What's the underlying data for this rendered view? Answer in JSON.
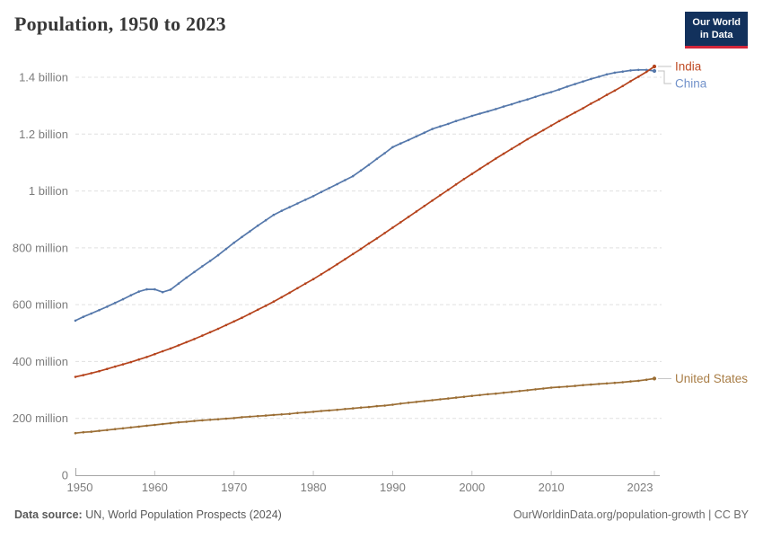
{
  "header": {
    "title": "Population, 1950 to 2023"
  },
  "logo": {
    "line1": "Our World",
    "line2": "in Data",
    "bg": "#12315c",
    "accent": "#d2263a"
  },
  "footer": {
    "source_label": "Data source:",
    "source_text": " UN, World Population Prospects (2024)",
    "right_text": "OurWorldinData.org/population-growth | CC BY"
  },
  "colors": {
    "grid": "#e0e0e0",
    "axis": "#a5a5a5",
    "tick": "#c3c3c3",
    "tick_label": "#7c7c7c",
    "connector": "#c2c2c2"
  },
  "chart_data": {
    "type": "line",
    "title": "Population, 1950 to 2023",
    "unit": "millions of people",
    "grid": true,
    "legend_position": "right-entity-labels",
    "ylim": [
      0,
      1400
    ],
    "xlim": [
      1950,
      2023
    ],
    "x": [
      1950,
      1951,
      1952,
      1953,
      1954,
      1955,
      1956,
      1957,
      1958,
      1959,
      1960,
      1961,
      1962,
      1963,
      1964,
      1965,
      1966,
      1967,
      1968,
      1969,
      1970,
      1971,
      1972,
      1973,
      1974,
      1975,
      1976,
      1977,
      1978,
      1979,
      1980,
      1981,
      1982,
      1983,
      1984,
      1985,
      1986,
      1987,
      1988,
      1989,
      1990,
      1991,
      1992,
      1993,
      1994,
      1995,
      1996,
      1997,
      1998,
      1999,
      2000,
      2001,
      2002,
      2003,
      2004,
      2005,
      2006,
      2007,
      2008,
      2009,
      2010,
      2011,
      2012,
      2013,
      2014,
      2015,
      2016,
      2017,
      2018,
      2019,
      2020,
      2021,
      2022,
      2023
    ],
    "series": [
      {
        "name": "India",
        "color": "#b5431c",
        "label_color": "#bf4b24",
        "values": [
          346,
          352,
          359,
          366,
          374,
          382,
          390,
          398,
          407,
          416,
          426,
          436,
          446,
          457,
          468,
          479,
          491,
          503,
          515,
          528,
          541,
          554,
          568,
          582,
          596,
          611,
          626,
          642,
          658,
          674,
          690,
          707,
          724,
          742,
          760,
          778,
          796,
          815,
          833,
          852,
          871,
          890,
          909,
          928,
          947,
          966,
          985,
          1004,
          1023,
          1042,
          1060,
          1078,
          1096,
          1114,
          1131,
          1148,
          1165,
          1182,
          1198,
          1214,
          1230,
          1246,
          1261,
          1276,
          1291,
          1307,
          1322,
          1338,
          1353,
          1369,
          1386,
          1402,
          1419,
          1438
        ]
      },
      {
        "name": "China",
        "color": "#5578ab",
        "label_color": "#7292ca",
        "values": [
          544,
          557,
          569,
          581,
          593,
          606,
          619,
          633,
          646,
          654,
          654,
          644,
          653,
          674,
          695,
          715,
          735,
          754,
          774,
          796,
          818,
          838,
          858,
          878,
          897,
          916,
          930,
          943,
          956,
          969,
          982,
          996,
          1010,
          1024,
          1038,
          1052,
          1072,
          1092,
          1113,
          1133,
          1154,
          1167,
          1179,
          1192,
          1205,
          1218,
          1227,
          1236,
          1246,
          1255,
          1264,
          1272,
          1280,
          1288,
          1297,
          1305,
          1314,
          1322,
          1331,
          1340,
          1348,
          1357,
          1367,
          1376,
          1385,
          1394,
          1402,
          1410,
          1416,
          1420,
          1424,
          1426,
          1426,
          1422
        ]
      },
      {
        "name": "United States",
        "color": "#9b6e35",
        "label_color": "#a97e47",
        "values": [
          148,
          151,
          153,
          156,
          159,
          162,
          165,
          168,
          171,
          174,
          177,
          180,
          183,
          186,
          188,
          191,
          193,
          195,
          197,
          199,
          201,
          204,
          206,
          208,
          210,
          212,
          214,
          216,
          219,
          221,
          223,
          226,
          228,
          230,
          233,
          235,
          238,
          240,
          243,
          245,
          248,
          252,
          255,
          258,
          261,
          264,
          267,
          270,
          273,
          276,
          279,
          282,
          285,
          287,
          290,
          293,
          296,
          299,
          302,
          305,
          308,
          310,
          312,
          314,
          317,
          319,
          321,
          323,
          325,
          327,
          330,
          332,
          336,
          340
        ]
      }
    ],
    "yticks": [
      {
        "value": 0,
        "label": "0"
      },
      {
        "value": 200,
        "label": "200 million"
      },
      {
        "value": 400,
        "label": "400 million"
      },
      {
        "value": 600,
        "label": "600 million"
      },
      {
        "value": 800,
        "label": "800 million"
      },
      {
        "value": 1000,
        "label": "1 billion"
      },
      {
        "value": 1200,
        "label": "1.2 billion"
      },
      {
        "value": 1400,
        "label": "1.4 billion"
      }
    ],
    "xticks": [
      1950,
      1960,
      1970,
      1980,
      1990,
      2000,
      2010,
      2023
    ]
  }
}
